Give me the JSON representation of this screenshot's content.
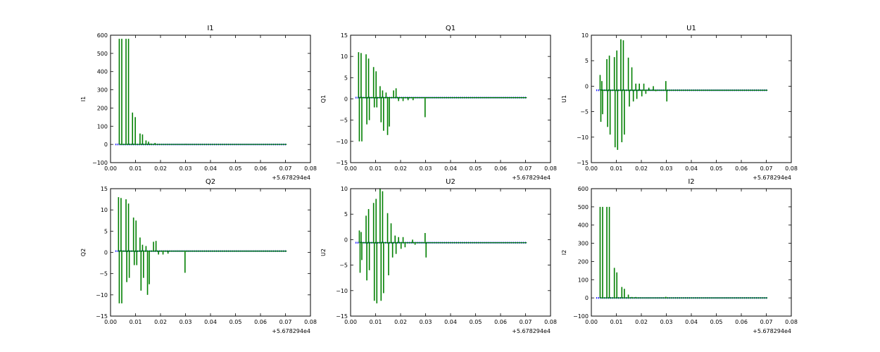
{
  "figure": {
    "background": "#ffffff",
    "colors": {
      "blue": "#0000ff",
      "green": "#007f00",
      "axes": "#000000"
    }
  },
  "chart_data": [
    {
      "type": "line",
      "title": "I1",
      "xlabel": "",
      "ylabel": "I1",
      "xlim": [
        0.0,
        0.08
      ],
      "ylim": [
        -100,
        600
      ],
      "x_tick_labels": [
        "0.00",
        "0.01",
        "0.02",
        "0.03",
        "0.04",
        "0.05",
        "0.06",
        "0.07",
        "0.08"
      ],
      "y_tick_labels": [
        "−100",
        "0",
        "100",
        "200",
        "300",
        "400",
        "500",
        "600"
      ],
      "y_tick_values": [
        -100,
        0,
        100,
        200,
        300,
        400,
        500,
        600
      ],
      "x_offset_label": "+5.678294e4",
      "grid": false,
      "series": [
        {
          "color": "#0000ff",
          "style": "dots",
          "x_start": 0.002,
          "x_end": 0.0705,
          "value": 0
        },
        {
          "color": "#007f00",
          "style": "spikes",
          "baseline": 0,
          "x_end": 0.0705,
          "spikes": [
            [
              0.0035,
              580
            ],
            [
              0.0045,
              580
            ],
            [
              0.0062,
              580
            ],
            [
              0.0072,
              580
            ],
            [
              0.0088,
              175
            ],
            [
              0.0099,
              150
            ],
            [
              0.0118,
              60
            ],
            [
              0.0128,
              55
            ],
            [
              0.0142,
              22
            ],
            [
              0.0152,
              15
            ],
            [
              0.0162,
              5
            ],
            [
              0.0178,
              8
            ],
            [
              0.0195,
              3
            ],
            [
              0.022,
              2
            ],
            [
              0.026,
              2
            ],
            [
              0.03,
              3
            ],
            [
              0.035,
              1
            ],
            [
              0.04,
              1
            ]
          ]
        }
      ]
    },
    {
      "type": "line",
      "title": "Q1",
      "xlabel": "",
      "ylabel": "Q1",
      "xlim": [
        0.0,
        0.08
      ],
      "ylim": [
        -15,
        15
      ],
      "x_tick_labels": [
        "0.00",
        "0.01",
        "0.02",
        "0.03",
        "0.04",
        "0.05",
        "0.06",
        "0.07",
        "0.08"
      ],
      "y_tick_labels": [
        "−15",
        "−10",
        "−5",
        "0",
        "5",
        "10",
        "15"
      ],
      "y_tick_values": [
        -15,
        -10,
        -5,
        0,
        5,
        10,
        15
      ],
      "x_offset_label": "+5.678294e4",
      "grid": false,
      "series": [
        {
          "color": "#0000ff",
          "style": "dots",
          "x_start": 0.002,
          "x_end": 0.0705,
          "value": 0.3
        },
        {
          "color": "#007f00",
          "style": "spikes",
          "baseline": 0.3,
          "x_end": 0.0705,
          "spikes": [
            [
              0.0032,
              11
            ],
            [
              0.0035,
              -10
            ],
            [
              0.0042,
              10.8
            ],
            [
              0.0045,
              -10
            ],
            [
              0.0062,
              10.5
            ],
            [
              0.0065,
              -6
            ],
            [
              0.0072,
              9.5
            ],
            [
              0.0075,
              -5
            ],
            [
              0.0092,
              7.5
            ],
            [
              0.0095,
              -2
            ],
            [
              0.0102,
              6.5
            ],
            [
              0.0105,
              -2
            ],
            [
              0.0118,
              3
            ],
            [
              0.0122,
              -5.5
            ],
            [
              0.0128,
              2
            ],
            [
              0.0132,
              -7.5
            ],
            [
              0.0142,
              1.5
            ],
            [
              0.0148,
              -8.5
            ],
            [
              0.0155,
              -6.5
            ],
            [
              0.0172,
              2
            ],
            [
              0.0182,
              2.5
            ],
            [
              0.0192,
              -0.5
            ],
            [
              0.021,
              -0.5
            ],
            [
              0.023,
              -0.3
            ],
            [
              0.025,
              -0.3
            ],
            [
              0.0298,
              -4.3
            ]
          ]
        }
      ]
    },
    {
      "type": "line",
      "title": "U1",
      "xlabel": "",
      "ylabel": "U1",
      "xlim": [
        0.0,
        0.08
      ],
      "ylim": [
        -15,
        10
      ],
      "x_tick_labels": [
        "0.00",
        "0.01",
        "0.02",
        "0.03",
        "0.04",
        "0.05",
        "0.06",
        "0.07",
        "0.08"
      ],
      "y_tick_labels": [
        "−15",
        "−10",
        "−5",
        "0",
        "5",
        "10"
      ],
      "y_tick_values": [
        -15,
        -10,
        -5,
        0,
        5,
        10
      ],
      "x_offset_label": "+5.678294e4",
      "grid": false,
      "series": [
        {
          "color": "#0000ff",
          "style": "dots",
          "x_start": 0.002,
          "x_end": 0.0705,
          "value": -0.8
        },
        {
          "color": "#007f00",
          "style": "spikes",
          "baseline": -0.8,
          "x_end": 0.0705,
          "spikes": [
            [
              0.0035,
              2.2
            ],
            [
              0.0038,
              -7
            ],
            [
              0.0042,
              1
            ],
            [
              0.0045,
              -5.5
            ],
            [
              0.0062,
              5.3
            ],
            [
              0.0065,
              -8
            ],
            [
              0.0072,
              6
            ],
            [
              0.0075,
              -9.5
            ],
            [
              0.0092,
              5.7
            ],
            [
              0.0095,
              -12
            ],
            [
              0.0102,
              7
            ],
            [
              0.0105,
              -12.5
            ],
            [
              0.0118,
              9.2
            ],
            [
              0.0122,
              -11
            ],
            [
              0.0128,
              9
            ],
            [
              0.0132,
              -9.5
            ],
            [
              0.0148,
              5.6
            ],
            [
              0.0152,
              -4
            ],
            [
              0.0162,
              3.7
            ],
            [
              0.0168,
              -3
            ],
            [
              0.0178,
              0.5
            ],
            [
              0.0182,
              -2.5
            ],
            [
              0.0192,
              0.5
            ],
            [
              0.0202,
              -2
            ],
            [
              0.021,
              0.5
            ],
            [
              0.0218,
              -1.5
            ],
            [
              0.023,
              -0.3
            ],
            [
              0.0248,
              0
            ],
            [
              0.0258,
              -1
            ],
            [
              0.0298,
              1
            ],
            [
              0.0302,
              -3
            ]
          ]
        }
      ]
    },
    {
      "type": "line",
      "title": "Q2",
      "xlabel": "",
      "ylabel": "Q2",
      "xlim": [
        0.0,
        0.08
      ],
      "ylim": [
        -15,
        15
      ],
      "x_tick_labels": [
        "0.00",
        "0.01",
        "0.02",
        "0.03",
        "0.04",
        "0.05",
        "0.06",
        "0.07",
        "0.08"
      ],
      "y_tick_labels": [
        "−15",
        "−10",
        "−5",
        "0",
        "5",
        "10",
        "15"
      ],
      "y_tick_values": [
        -15,
        -10,
        -5,
        0,
        5,
        10,
        15
      ],
      "x_offset_label": "+5.678294e4",
      "grid": false,
      "series": [
        {
          "color": "#0000ff",
          "style": "dots",
          "x_start": 0.002,
          "x_end": 0.0705,
          "value": 0.3
        },
        {
          "color": "#007f00",
          "style": "spikes",
          "baseline": 0.3,
          "x_end": 0.0705,
          "spikes": [
            [
              0.0032,
              13
            ],
            [
              0.0035,
              -12
            ],
            [
              0.0042,
              12.8
            ],
            [
              0.0045,
              -12
            ],
            [
              0.0062,
              12.5
            ],
            [
              0.0065,
              -7
            ],
            [
              0.0072,
              11.5
            ],
            [
              0.0075,
              -6
            ],
            [
              0.0092,
              8.2
            ],
            [
              0.0095,
              -3
            ],
            [
              0.0102,
              7.5
            ],
            [
              0.0105,
              -3
            ],
            [
              0.0118,
              3.5
            ],
            [
              0.0122,
              -9
            ],
            [
              0.0128,
              1.8
            ],
            [
              0.0132,
              -6
            ],
            [
              0.0142,
              1.5
            ],
            [
              0.0148,
              -10
            ],
            [
              0.0155,
              -7.5
            ],
            [
              0.0172,
              2.5
            ],
            [
              0.0182,
              2.7
            ],
            [
              0.0192,
              -0.5
            ],
            [
              0.021,
              -0.5
            ],
            [
              0.023,
              -0.3
            ],
            [
              0.0248,
              0.3
            ],
            [
              0.0298,
              -4.8
            ]
          ]
        }
      ]
    },
    {
      "type": "line",
      "title": "U2",
      "xlabel": "",
      "ylabel": "U2",
      "xlim": [
        0.0,
        0.08
      ],
      "ylim": [
        -15,
        10
      ],
      "x_tick_labels": [
        "0.00",
        "0.01",
        "0.02",
        "0.03",
        "0.04",
        "0.05",
        "0.06",
        "0.07",
        "0.08"
      ],
      "y_tick_labels": [
        "−15",
        "−10",
        "−5",
        "0",
        "5",
        "10"
      ],
      "y_tick_values": [
        -15,
        -10,
        -5,
        0,
        5,
        10
      ],
      "x_offset_label": "+5.678294e4",
      "grid": false,
      "series": [
        {
          "color": "#0000ff",
          "style": "dots",
          "x_start": 0.002,
          "x_end": 0.0705,
          "value": -0.6
        },
        {
          "color": "#007f00",
          "style": "spikes",
          "baseline": -0.6,
          "x_end": 0.0705,
          "spikes": [
            [
              0.0035,
              1.8
            ],
            [
              0.0038,
              -6.5
            ],
            [
              0.0042,
              1.5
            ],
            [
              0.0045,
              -4
            ],
            [
              0.0062,
              4.7
            ],
            [
              0.0065,
              -8
            ],
            [
              0.0072,
              6
            ],
            [
              0.0075,
              -6
            ],
            [
              0.0092,
              7.2
            ],
            [
              0.0095,
              -12
            ],
            [
              0.0102,
              8
            ],
            [
              0.0105,
              -12.5
            ],
            [
              0.0118,
              10
            ],
            [
              0.0122,
              -12
            ],
            [
              0.0128,
              9.5
            ],
            [
              0.0132,
              -10.5
            ],
            [
              0.0148,
              5.2
            ],
            [
              0.0152,
              -7
            ],
            [
              0.0162,
              3.2
            ],
            [
              0.0168,
              -3.5
            ],
            [
              0.0178,
              0.8
            ],
            [
              0.0182,
              -2.8
            ],
            [
              0.0192,
              0.5
            ],
            [
              0.0202,
              -1.8
            ],
            [
              0.021,
              0.5
            ],
            [
              0.0218,
              -1.5
            ],
            [
              0.0248,
              0
            ],
            [
              0.0258,
              -1
            ],
            [
              0.0298,
              1.3
            ],
            [
              0.0302,
              -3.5
            ]
          ]
        }
      ]
    },
    {
      "type": "line",
      "title": "I2",
      "xlabel": "",
      "ylabel": "I2",
      "xlim": [
        0.0,
        0.08
      ],
      "ylim": [
        -100,
        600
      ],
      "x_tick_labels": [
        "0.00",
        "0.01",
        "0.02",
        "0.03",
        "0.04",
        "0.05",
        "0.06",
        "0.07",
        "0.08"
      ],
      "y_tick_labels": [
        "−100",
        "0",
        "100",
        "200",
        "300",
        "400",
        "500",
        "600"
      ],
      "y_tick_values": [
        -100,
        0,
        100,
        200,
        300,
        400,
        500,
        600
      ],
      "x_offset_label": "+5.678294e4",
      "grid": false,
      "series": [
        {
          "color": "#0000ff",
          "style": "dots",
          "x_start": 0.002,
          "x_end": 0.0705,
          "value": 0
        },
        {
          "color": "#007f00",
          "style": "spikes",
          "baseline": 0,
          "x_end": 0.0705,
          "spikes": [
            [
              0.0035,
              500
            ],
            [
              0.0045,
              500
            ],
            [
              0.0062,
              500
            ],
            [
              0.0072,
              500
            ],
            [
              0.0092,
              165
            ],
            [
              0.0102,
              140
            ],
            [
              0.0122,
              60
            ],
            [
              0.0132,
              50
            ],
            [
              0.0148,
              18
            ],
            [
              0.0162,
              5
            ],
            [
              0.0178,
              5
            ],
            [
              0.0195,
              3
            ],
            [
              0.022,
              2
            ],
            [
              0.0298,
              6
            ],
            [
              0.035,
              1
            ]
          ]
        }
      ]
    }
  ]
}
